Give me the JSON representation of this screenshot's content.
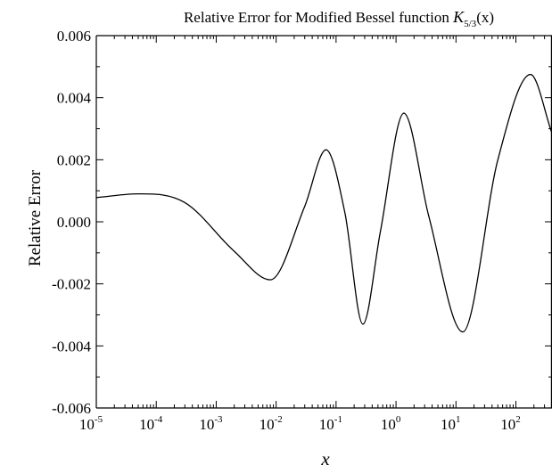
{
  "chart_data": {
    "type": "line",
    "title": {
      "prefix": "Relative Error for Modified Bessel function ",
      "symbol": "K",
      "subscript": "5/3",
      "suffix": "(x)"
    },
    "xlabel": "x",
    "ylabel": "Relative Error",
    "x_scale": "log",
    "xlim": [
      1e-05,
      400
    ],
    "ylim": [
      -0.006,
      0.006
    ],
    "x_ticks": [
      {
        "value": 1e-05,
        "base": "10",
        "exp": "-5"
      },
      {
        "value": 0.0001,
        "base": "10",
        "exp": "-4"
      },
      {
        "value": 0.001,
        "base": "10",
        "exp": "-3"
      },
      {
        "value": 0.01,
        "base": "10",
        "exp": "-2"
      },
      {
        "value": 0.1,
        "base": "10",
        "exp": "-1"
      },
      {
        "value": 1,
        "base": "10",
        "exp": "0"
      },
      {
        "value": 10,
        "base": "10",
        "exp": "1"
      },
      {
        "value": 100,
        "base": "10",
        "exp": "2"
      }
    ],
    "y_ticks": [
      {
        "value": 0.006,
        "label": "0.006"
      },
      {
        "value": 0.004,
        "label": "0.004"
      },
      {
        "value": 0.002,
        "label": "0.002"
      },
      {
        "value": 0.0,
        "label": "0.000"
      },
      {
        "value": -0.002,
        "label": "-0.002"
      },
      {
        "value": -0.004,
        "label": "-0.004"
      },
      {
        "value": -0.006,
        "label": "-0.006"
      }
    ],
    "grid": false,
    "series": [
      {
        "color": "#000000",
        "points": [
          {
            "x": 1e-05,
            "y": 0.00078
          },
          {
            "x": 5e-05,
            "y": 0.0009
          },
          {
            "x": 0.0003,
            "y": 0.00062
          },
          {
            "x": 0.002,
            "y": -0.00095
          },
          {
            "x": 0.008,
            "y": -0.00187
          },
          {
            "x": 0.03,
            "y": 0.0005
          },
          {
            "x": 0.068,
            "y": 0.00232
          },
          {
            "x": 0.14,
            "y": 0.0003
          },
          {
            "x": 0.28,
            "y": -0.0033
          },
          {
            "x": 0.55,
            "y": -0.0003
          },
          {
            "x": 1.35,
            "y": 0.0035
          },
          {
            "x": 3.5,
            "y": 0.0002
          },
          {
            "x": 13,
            "y": -0.00355
          },
          {
            "x": 50,
            "y": 0.002
          },
          {
            "x": 175,
            "y": 0.00475
          },
          {
            "x": 400,
            "y": 0.00285
          }
        ]
      }
    ]
  }
}
